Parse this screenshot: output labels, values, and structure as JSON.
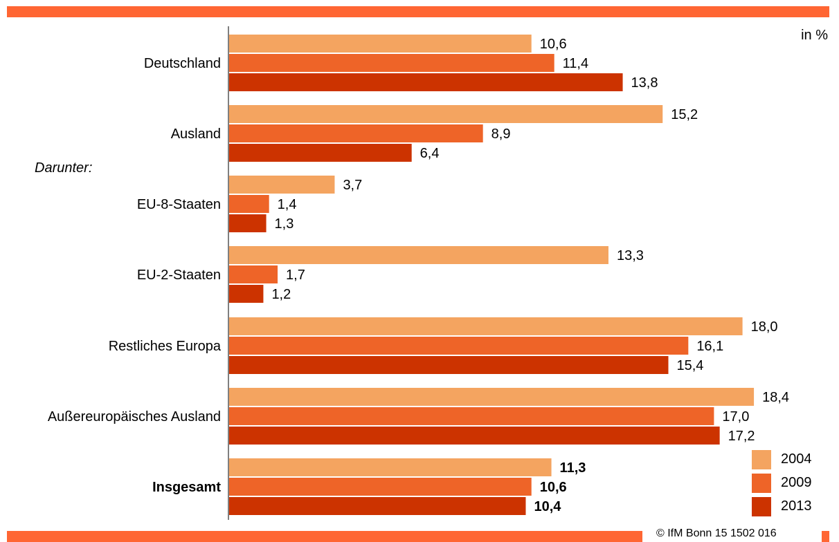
{
  "unit_label": "in %",
  "copyright": "© IfM Bonn  15  1502  016",
  "colors": {
    "band": "#ff6633",
    "axis": "#7f7f7f"
  },
  "chart_data": {
    "type": "bar",
    "orientation": "horizontal",
    "value_format": "de-DE, 1 decimal",
    "categories": [
      "Deutschland",
      "Ausland",
      "EU-8-Staaten",
      "EU-2-Staaten",
      "Restliches Europa",
      "Außereuropäisches Ausland",
      "Insgesamt"
    ],
    "category_styles": [
      "normal",
      "normal",
      "normal",
      "normal",
      "normal",
      "normal",
      "bold"
    ],
    "section_label": {
      "text": "Darunter:",
      "style": "italic"
    },
    "series": [
      {
        "name": "2004",
        "color": "#f4a460",
        "values": [
          10.6,
          15.2,
          3.7,
          13.3,
          18.0,
          18.4,
          11.3
        ]
      },
      {
        "name": "2009",
        "color": "#ee6428",
        "values": [
          11.4,
          8.9,
          1.4,
          1.7,
          16.1,
          17.0,
          10.6
        ]
      },
      {
        "name": "2013",
        "color": "#cc3300",
        "values": [
          13.8,
          6.4,
          1.3,
          1.2,
          15.4,
          17.2,
          10.4
        ]
      }
    ],
    "xlim": [
      0,
      20
    ],
    "grid": false,
    "legend_position": "bottom-right"
  }
}
